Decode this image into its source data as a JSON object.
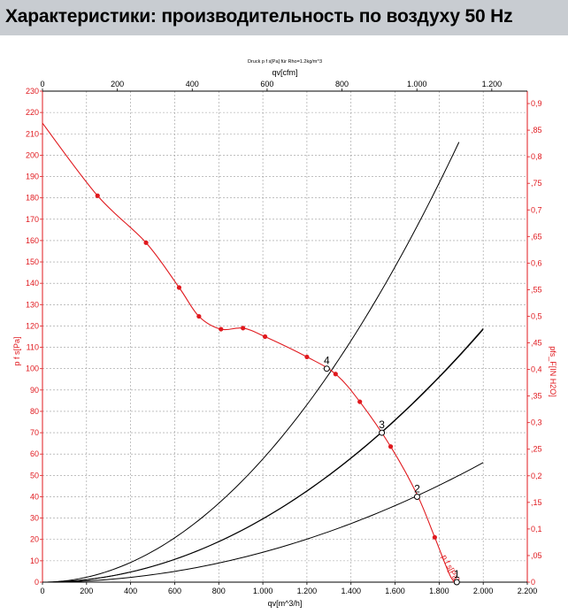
{
  "header": {
    "title": "Характеристики: производительность по воздуху 50 Hz"
  },
  "chart_data": {
    "type": "line",
    "title": "Druck p f s[Pa] für Rho=1.2kg/m^3",
    "xlabel_bottom": "qv[m^3/h]",
    "xlabel_top": "qv[cfm]",
    "ylabel_left": "p f s[Pa]",
    "ylabel_right": "pfs_F[IN H2O]",
    "xlim": [
      0,
      2200
    ],
    "ylim": [
      0,
      230
    ],
    "x_ticks": [
      "0",
      "200",
      "400",
      "600",
      "800",
      "1.000",
      "1.200",
      "1.400",
      "1.600",
      "1.800",
      "2.000",
      "2.200"
    ],
    "x_tick_values": [
      0,
      200,
      400,
      600,
      800,
      1000,
      1200,
      1400,
      1600,
      1800,
      2000,
      2200
    ],
    "y_ticks": [
      "0",
      "10",
      "20",
      "30",
      "40",
      "50",
      "60",
      "70",
      "80",
      "90",
      "100",
      "110",
      "120",
      "130",
      "140",
      "150",
      "160",
      "170",
      "180",
      "190",
      "200",
      "210",
      "220",
      "230"
    ],
    "y_tick_values": [
      0,
      10,
      20,
      30,
      40,
      50,
      60,
      70,
      80,
      90,
      100,
      110,
      120,
      130,
      140,
      150,
      160,
      170,
      180,
      190,
      200,
      210,
      220,
      230
    ],
    "top_ticks": [
      "0",
      "200",
      "400",
      "600",
      "800",
      "1.000",
      "1.200"
    ],
    "top_tick_values": [
      0,
      200,
      400,
      600,
      800,
      1000,
      1200
    ],
    "right_ticks": [
      "0",
      ",05",
      "0,1",
      ",15",
      "0,2",
      ",25",
      "0,3",
      ",35",
      "0,4",
      ",45",
      "0,5",
      ",55",
      "0,6",
      ",65",
      "0,7",
      ",75",
      "0,8",
      ",85",
      "0,9"
    ],
    "right_tick_values": [
      0,
      0.05,
      0.1,
      0.15,
      0.2,
      0.25,
      0.3,
      0.35,
      0.4,
      0.45,
      0.5,
      0.55,
      0.6,
      0.65,
      0.7,
      0.75,
      0.8,
      0.85,
      0.9
    ],
    "grid": true,
    "fan_curve": {
      "label": "p f s[Pa]",
      "color": "#e0191e",
      "x": [
        0,
        250,
        470,
        620,
        710,
        810,
        910,
        1010,
        1200,
        1330,
        1440,
        1580,
        1700,
        1780,
        1850,
        1880
      ],
      "y": [
        215,
        181,
        159,
        138,
        124.5,
        118.5,
        119,
        115,
        105.5,
        97.5,
        84.5,
        63.5,
        41,
        21,
        3,
        0
      ],
      "markers_x": [
        250,
        470,
        620,
        710,
        810,
        910,
        1010,
        1200,
        1330,
        1440,
        1580,
        1780
      ],
      "markers_y": [
        181,
        159,
        138,
        124.5,
        118.5,
        119,
        115,
        105.5,
        97.5,
        84.5,
        63.5,
        21
      ]
    },
    "system_curves": [
      {
        "label": "1",
        "color": "#000000",
        "k": 1.4e-05,
        "x_end": 2000,
        "point": [
          1880,
          0
        ]
      },
      {
        "label": "2",
        "color": "#000000",
        "k": 2.96e-05,
        "x_end": 2000,
        "point": [
          1700,
          40
        ]
      },
      {
        "label": "3",
        "color": "#000000",
        "k": 2.97e-05,
        "x_end": 2000,
        "point": [
          1540,
          70
        ]
      },
      {
        "label": "4",
        "color": "#000000",
        "k": 5.77e-05,
        "x_end": 1890,
        "point": [
          1290,
          100
        ]
      }
    ],
    "colors": {
      "fan": "#e0191e",
      "axis_left": "#e0191e",
      "axis_right": "#e0191e",
      "system": "#000000",
      "grid": "#9a9a9a"
    }
  }
}
